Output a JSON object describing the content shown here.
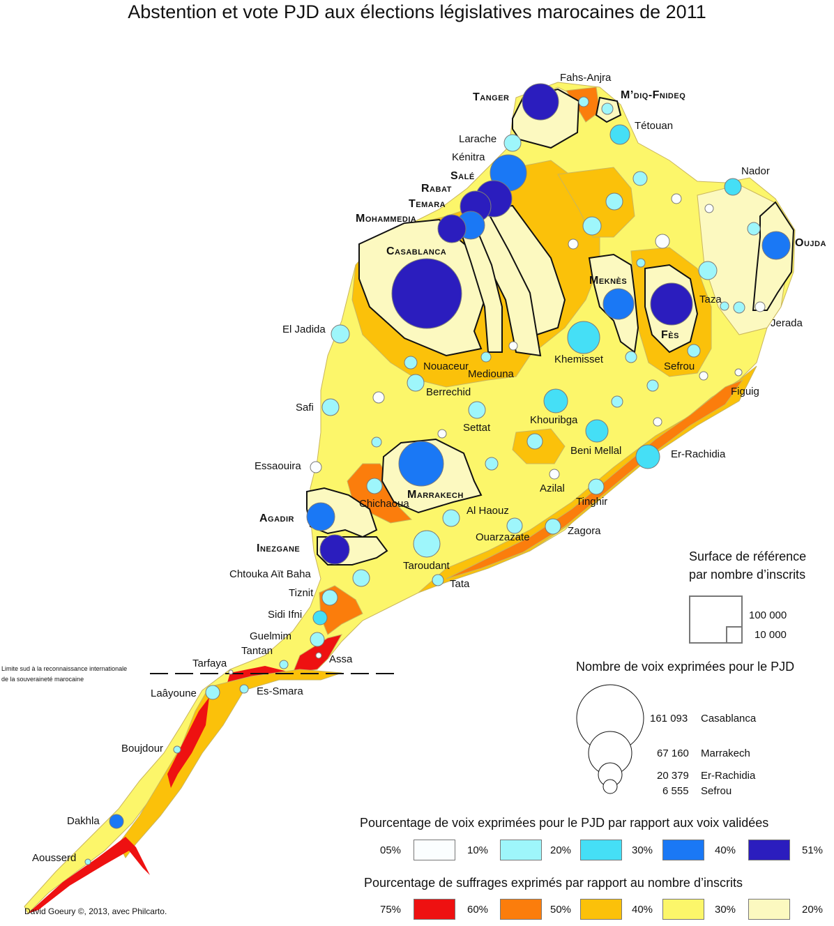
{
  "title": "Abstention et vote PJD aux élections législatives marocaines de 2011",
  "credit": "David Goeury ©, 2013, avec Philcarto.",
  "border_note": [
    "Limite sud à la reconnaissance internationale",
    "de la souveraineté marocaine"
  ],
  "colors": {
    "pjd_scale": [
      "#fbfeff",
      "#9ef6fb",
      "#45dff6",
      "#1a78f5",
      "#2b1dbe"
    ],
    "turnout_scale": [
      "#ee1111",
      "#fb7d0c",
      "#fbc10a",
      "#fcf66a",
      "#fcf9c0"
    ],
    "circle_stroke": "#7a7a7a"
  },
  "legend_size": {
    "title": [
      "Surface de référence",
      "par nombre d’inscrits"
    ],
    "values": [
      "100 000",
      "10 000"
    ]
  },
  "legend_votes": {
    "title": "Nombre de voix exprimées pour le PJD",
    "items": [
      {
        "value": "161 093",
        "place": "Casablanca"
      },
      {
        "value": "67 160",
        "place": "Marrakech"
      },
      {
        "value": "20 379",
        "place": "Er-Rachidia"
      },
      {
        "value": "6 555",
        "place": "Sefrou"
      }
    ]
  },
  "legend_pjd": {
    "title": "Pourcentage de voix exprimées pour le PJD par rapport aux voix validées",
    "breaks": [
      "05%",
      "10%",
      "20%",
      "30%",
      "40%",
      "51%"
    ]
  },
  "legend_turnout": {
    "title": "Pourcentage de suffrages exprimés par rapport au nombre d’inscrits",
    "breaks": [
      "75%",
      "60%",
      "50%",
      "40%",
      "30%",
      "20%"
    ]
  },
  "places": [
    "Fahs-Anjra",
    "Tétouan",
    "Larache",
    "Kénitra",
    "Nador",
    "Jerada",
    "Taza",
    "Figuig",
    "El Jadida",
    "Nouaceur",
    "Mediouna",
    "Berrechid",
    "Khemisset",
    "Sefrou",
    "Safi",
    "Settat",
    "Khouribga",
    "Beni Mellal",
    "Er-Rachidia",
    "Essaouira",
    "Azilal",
    "Chichaoua",
    "Al Haouz",
    "Tinghir",
    "Zagora",
    "Ouarzazate",
    "Taroudant",
    "Tata",
    "Chtouka Aït Baha",
    "Tiznit",
    "Sidi Ifni",
    "Guelmim",
    "Tantan",
    "Tarfaya",
    "Assa",
    "Laâyoune",
    "Es-Smara",
    "Boujdour",
    "Dakhla",
    "Aousserd"
  ],
  "cities": [
    "Tanger",
    "M’diq-Fnideq",
    "Salé",
    "Rabat",
    "Temara",
    "Mohammedia",
    "Casablanca",
    "Meknès",
    "Fès",
    "Oujda",
    "Marrakech",
    "Agadir",
    "Inezgane"
  ]
}
